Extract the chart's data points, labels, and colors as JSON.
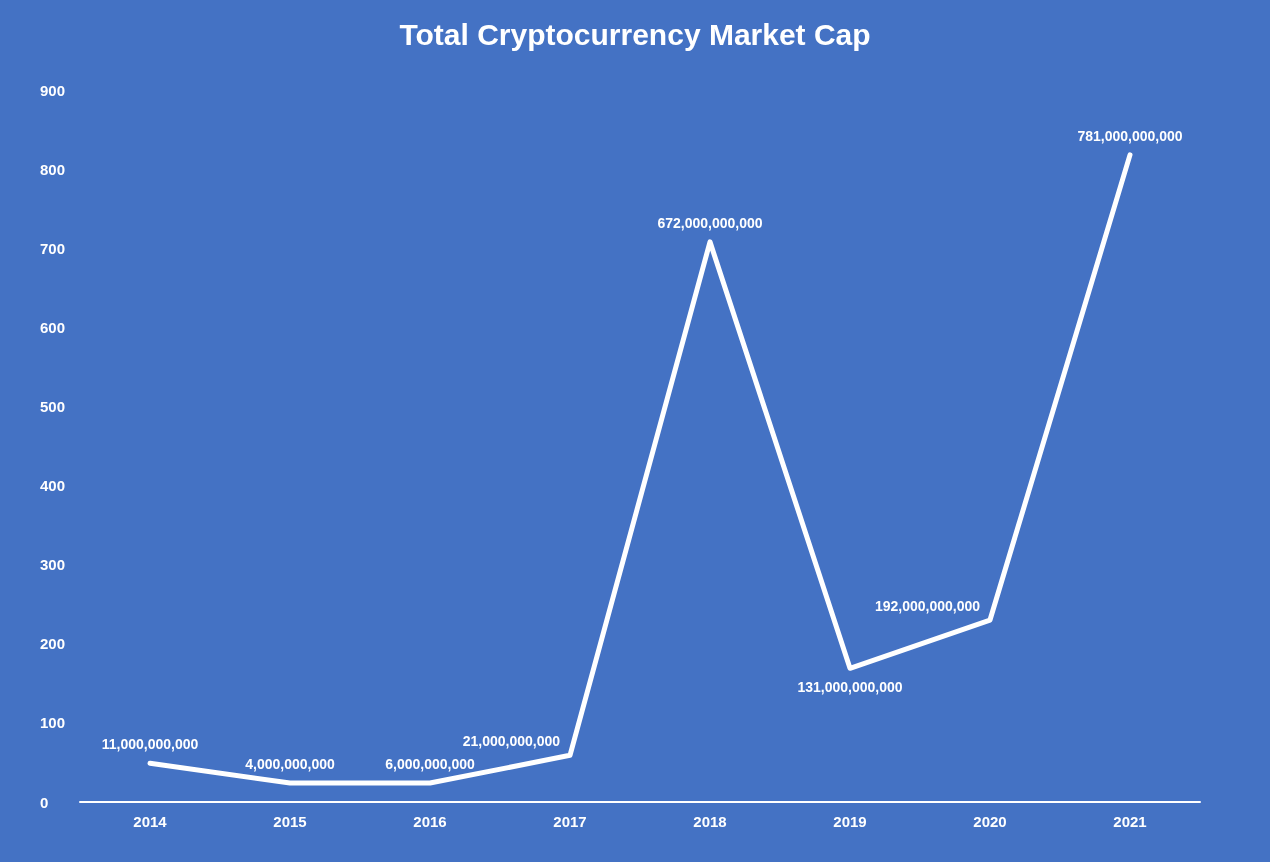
{
  "chart_data": {
    "type": "line",
    "title": "Total Cryptocurrency Market Cap",
    "categories": [
      "2014",
      "2015",
      "2016",
      "2017",
      "2018",
      "2019",
      "2020",
      "2021"
    ],
    "series": [
      {
        "color": "#ffffff",
        "values": [
          49,
          24,
          24,
          59,
          708,
          169,
          230,
          818
        ]
      }
    ],
    "annotations": [
      {
        "text": "11,000,000,000",
        "x": "2014",
        "y": 49
      },
      {
        "text": "4,000,000,000",
        "x": "2015",
        "y": 24
      },
      {
        "text": "6,000,000,000",
        "x": "2016",
        "y": 24
      },
      {
        "text": "21,000,000,000",
        "x": "2017",
        "y": 59
      },
      {
        "text": "672,000,000,000",
        "x": "2018",
        "y": 708
      },
      {
        "text": "131,000,000,000",
        "x": "2019",
        "y": 169
      },
      {
        "text": "192,000,000,000",
        "x": "2020",
        "y": 230
      },
      {
        "text": "781,000,000,000",
        "x": "2021",
        "y": 818
      }
    ],
    "ylim": [
      0,
      900
    ],
    "yticks": [
      0,
      100,
      200,
      300,
      400,
      500,
      600,
      700,
      800,
      900
    ]
  }
}
